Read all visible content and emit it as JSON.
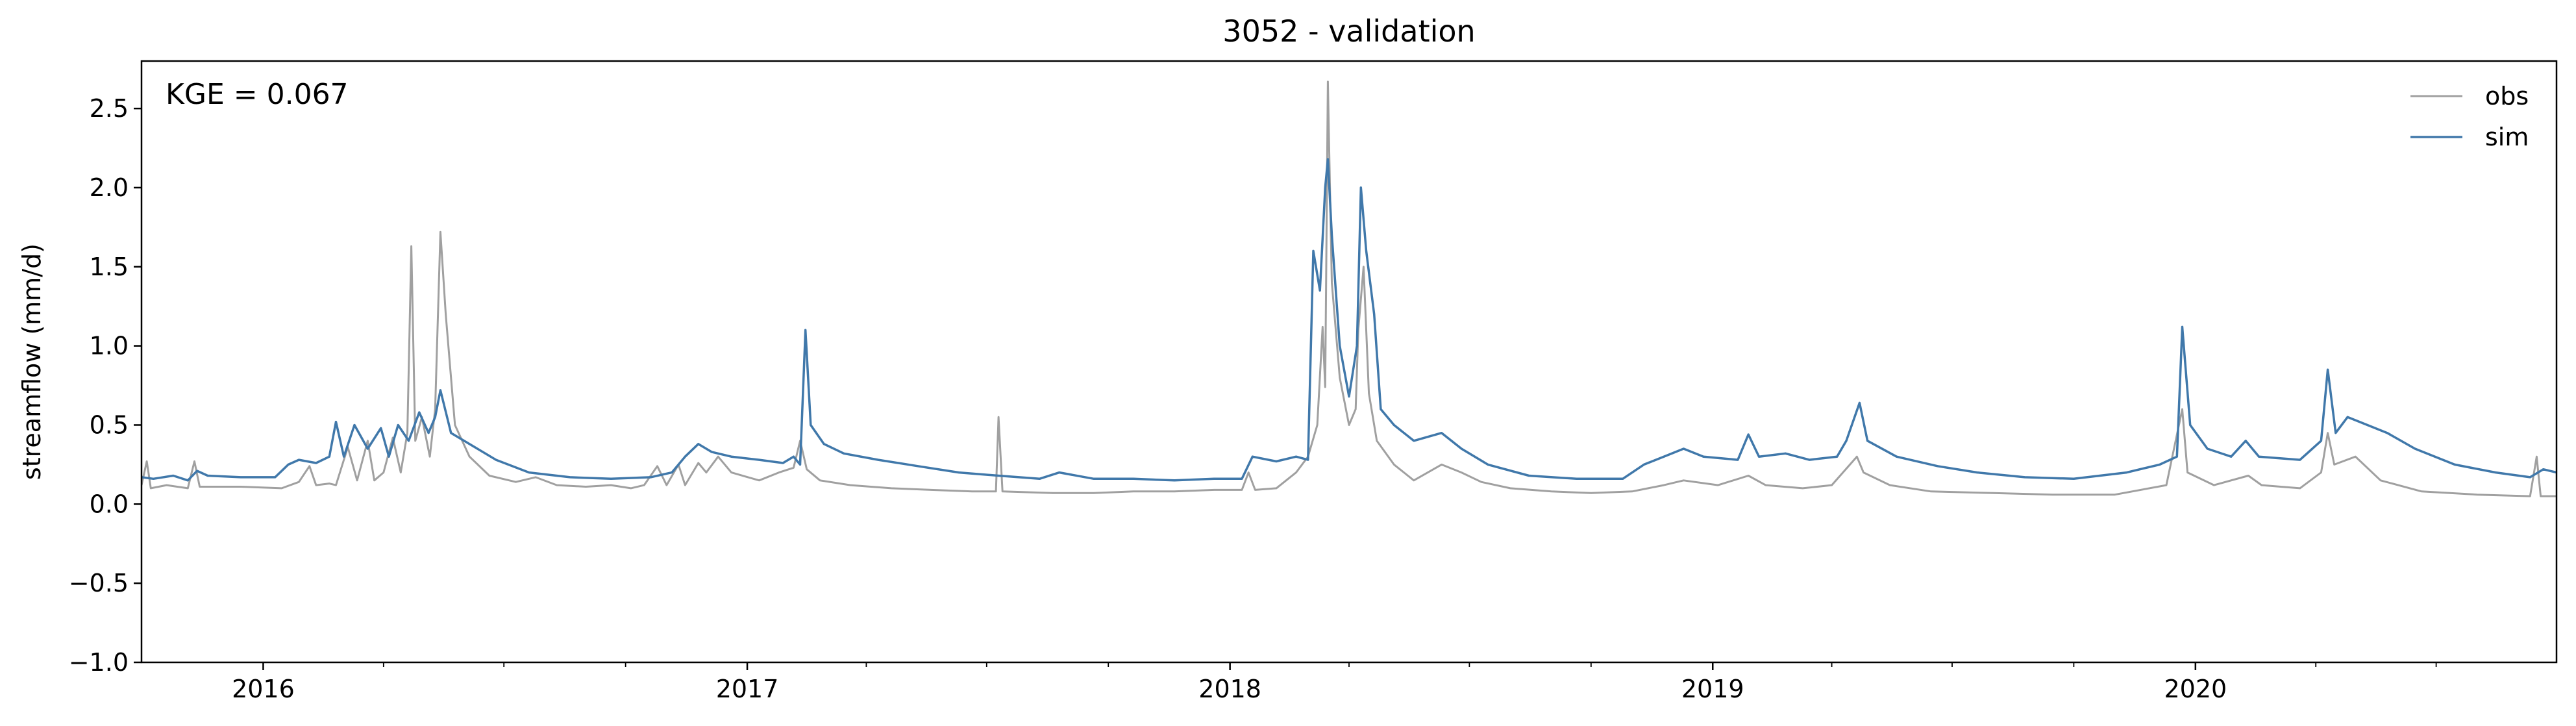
{
  "chart_data": {
    "type": "line",
    "title": "3052 - validation",
    "xlabel": "",
    "ylabel": "streamflow (mm/d)",
    "xlim": [
      "2015-10-01",
      "2020-09-30"
    ],
    "ylim": [
      -1.0,
      2.8
    ],
    "yticks": [
      -1.0,
      -0.5,
      0.0,
      0.5,
      1.0,
      1.5,
      2.0,
      2.5
    ],
    "ytick_labels": [
      "−1.0",
      "−0.5",
      "0.0",
      "0.5",
      "1.0",
      "1.5",
      "2.0",
      "2.5"
    ],
    "xticks": [
      "2016-01-01",
      "2017-01-01",
      "2018-01-01",
      "2019-01-01",
      "2020-01-01"
    ],
    "xtick_labels": [
      "2016",
      "2017",
      "2018",
      "2019",
      "2020"
    ],
    "grid": false,
    "legend_position": "top-right",
    "annotation": "KGE = 0.067",
    "series": [
      {
        "name": "obs",
        "color": "#a0a0a0",
        "points": [
          [
            "2015-10-01",
            0.12
          ],
          [
            "2015-10-05",
            0.27
          ],
          [
            "2015-10-08",
            0.1
          ],
          [
            "2015-10-20",
            0.12
          ],
          [
            "2015-11-05",
            0.1
          ],
          [
            "2015-11-10",
            0.27
          ],
          [
            "2015-11-14",
            0.11
          ],
          [
            "2015-12-15",
            0.11
          ],
          [
            "2016-01-15",
            0.1
          ],
          [
            "2016-01-28",
            0.14
          ],
          [
            "2016-02-05",
            0.24
          ],
          [
            "2016-02-10",
            0.12
          ],
          [
            "2016-02-20",
            0.13
          ],
          [
            "2016-02-25",
            0.12
          ],
          [
            "2016-03-05",
            0.36
          ],
          [
            "2016-03-12",
            0.15
          ],
          [
            "2016-03-20",
            0.4
          ],
          [
            "2016-03-25",
            0.15
          ],
          [
            "2016-04-01",
            0.2
          ],
          [
            "2016-04-08",
            0.42
          ],
          [
            "2016-04-14",
            0.2
          ],
          [
            "2016-04-19",
            0.45
          ],
          [
            "2016-04-22",
            1.63
          ],
          [
            "2016-04-25",
            0.4
          ],
          [
            "2016-04-30",
            0.55
          ],
          [
            "2016-05-06",
            0.3
          ],
          [
            "2016-05-10",
            0.6
          ],
          [
            "2016-05-14",
            1.72
          ],
          [
            "2016-05-18",
            1.2
          ],
          [
            "2016-05-25",
            0.5
          ],
          [
            "2016-06-05",
            0.3
          ],
          [
            "2016-06-20",
            0.18
          ],
          [
            "2016-07-10",
            0.14
          ],
          [
            "2016-07-25",
            0.17
          ],
          [
            "2016-08-10",
            0.12
          ],
          [
            "2016-09-01",
            0.11
          ],
          [
            "2016-09-20",
            0.12
          ],
          [
            "2016-10-05",
            0.1
          ],
          [
            "2016-10-15",
            0.12
          ],
          [
            "2016-10-25",
            0.24
          ],
          [
            "2016-11-01",
            0.12
          ],
          [
            "2016-11-10",
            0.25
          ],
          [
            "2016-11-15",
            0.12
          ],
          [
            "2016-11-25",
            0.26
          ],
          [
            "2016-12-01",
            0.2
          ],
          [
            "2016-12-10",
            0.3
          ],
          [
            "2016-12-20",
            0.2
          ],
          [
            "2017-01-10",
            0.15
          ],
          [
            "2017-01-25",
            0.2
          ],
          [
            "2017-02-05",
            0.23
          ],
          [
            "2017-02-10",
            0.4
          ],
          [
            "2017-02-15",
            0.22
          ],
          [
            "2017-02-25",
            0.15
          ],
          [
            "2017-03-20",
            0.12
          ],
          [
            "2017-04-20",
            0.1
          ],
          [
            "2017-05-20",
            0.09
          ],
          [
            "2017-06-20",
            0.08
          ],
          [
            "2017-07-08",
            0.08
          ],
          [
            "2017-07-10",
            0.55
          ],
          [
            "2017-07-13",
            0.08
          ],
          [
            "2017-08-20",
            0.07
          ],
          [
            "2017-09-20",
            0.07
          ],
          [
            "2017-10-20",
            0.08
          ],
          [
            "2017-11-20",
            0.08
          ],
          [
            "2017-12-20",
            0.09
          ],
          [
            "2018-01-10",
            0.09
          ],
          [
            "2018-01-15",
            0.2
          ],
          [
            "2018-01-20",
            0.09
          ],
          [
            "2018-02-05",
            0.1
          ],
          [
            "2018-02-20",
            0.2
          ],
          [
            "2018-03-01",
            0.3
          ],
          [
            "2018-03-08",
            0.5
          ],
          [
            "2018-03-12",
            1.12
          ],
          [
            "2018-03-14",
            0.74
          ],
          [
            "2018-03-16",
            2.67
          ],
          [
            "2018-03-19",
            1.4
          ],
          [
            "2018-03-25",
            0.8
          ],
          [
            "2018-04-01",
            0.5
          ],
          [
            "2018-04-06",
            0.6
          ],
          [
            "2018-04-08",
            1.1
          ],
          [
            "2018-04-12",
            1.5
          ],
          [
            "2018-04-16",
            0.7
          ],
          [
            "2018-04-22",
            0.4
          ],
          [
            "2018-05-05",
            0.25
          ],
          [
            "2018-05-20",
            0.15
          ],
          [
            "2018-06-10",
            0.25
          ],
          [
            "2018-06-25",
            0.2
          ],
          [
            "2018-07-10",
            0.14
          ],
          [
            "2018-08-01",
            0.1
          ],
          [
            "2018-09-01",
            0.08
          ],
          [
            "2018-10-01",
            0.07
          ],
          [
            "2018-11-01",
            0.08
          ],
          [
            "2018-11-25",
            0.12
          ],
          [
            "2018-12-10",
            0.15
          ],
          [
            "2019-01-05",
            0.12
          ],
          [
            "2019-01-28",
            0.18
          ],
          [
            "2019-02-10",
            0.12
          ],
          [
            "2019-03-10",
            0.1
          ],
          [
            "2019-04-01",
            0.12
          ],
          [
            "2019-04-20",
            0.3
          ],
          [
            "2019-04-25",
            0.2
          ],
          [
            "2019-05-15",
            0.12
          ],
          [
            "2019-06-15",
            0.08
          ],
          [
            "2019-08-01",
            0.07
          ],
          [
            "2019-09-15",
            0.06
          ],
          [
            "2019-11-01",
            0.06
          ],
          [
            "2019-12-10",
            0.12
          ],
          [
            "2019-12-22",
            0.6
          ],
          [
            "2019-12-26",
            0.2
          ],
          [
            "2020-01-15",
            0.12
          ],
          [
            "2020-02-10",
            0.18
          ],
          [
            "2020-02-20",
            0.12
          ],
          [
            "2020-03-20",
            0.1
          ],
          [
            "2020-04-05",
            0.2
          ],
          [
            "2020-04-10",
            0.45
          ],
          [
            "2020-04-15",
            0.25
          ],
          [
            "2020-05-01",
            0.3
          ],
          [
            "2020-05-20",
            0.15
          ],
          [
            "2020-06-20",
            0.08
          ],
          [
            "2020-08-01",
            0.06
          ],
          [
            "2020-09-10",
            0.05
          ],
          [
            "2020-09-15",
            0.3
          ],
          [
            "2020-09-18",
            0.05
          ],
          [
            "2020-09-30",
            0.05
          ]
        ]
      },
      {
        "name": "sim",
        "color": "#4078aa",
        "points": [
          [
            "2015-10-01",
            0.17
          ],
          [
            "2015-10-10",
            0.16
          ],
          [
            "2015-10-25",
            0.18
          ],
          [
            "2015-11-05",
            0.15
          ],
          [
            "2015-11-12",
            0.21
          ],
          [
            "2015-11-20",
            0.18
          ],
          [
            "2015-12-15",
            0.17
          ],
          [
            "2016-01-10",
            0.17
          ],
          [
            "2016-01-20",
            0.25
          ],
          [
            "2016-01-28",
            0.28
          ],
          [
            "2016-02-10",
            0.26
          ],
          [
            "2016-02-20",
            0.3
          ],
          [
            "2016-02-25",
            0.52
          ],
          [
            "2016-03-02",
            0.3
          ],
          [
            "2016-03-10",
            0.5
          ],
          [
            "2016-03-20",
            0.35
          ],
          [
            "2016-03-30",
            0.48
          ],
          [
            "2016-04-05",
            0.3
          ],
          [
            "2016-04-12",
            0.5
          ],
          [
            "2016-04-20",
            0.4
          ],
          [
            "2016-04-28",
            0.58
          ],
          [
            "2016-05-05",
            0.45
          ],
          [
            "2016-05-10",
            0.55
          ],
          [
            "2016-05-14",
            0.72
          ],
          [
            "2016-05-22",
            0.45
          ],
          [
            "2016-06-05",
            0.38
          ],
          [
            "2016-06-25",
            0.28
          ],
          [
            "2016-07-20",
            0.2
          ],
          [
            "2016-08-20",
            0.17
          ],
          [
            "2016-09-20",
            0.16
          ],
          [
            "2016-10-20",
            0.17
          ],
          [
            "2016-11-05",
            0.2
          ],
          [
            "2016-11-15",
            0.3
          ],
          [
            "2016-11-25",
            0.38
          ],
          [
            "2016-12-05",
            0.33
          ],
          [
            "2016-12-20",
            0.3
          ],
          [
            "2017-01-10",
            0.28
          ],
          [
            "2017-01-28",
            0.26
          ],
          [
            "2017-02-05",
            0.3
          ],
          [
            "2017-02-10",
            0.25
          ],
          [
            "2017-02-14",
            1.1
          ],
          [
            "2017-02-18",
            0.5
          ],
          [
            "2017-02-28",
            0.38
          ],
          [
            "2017-03-15",
            0.32
          ],
          [
            "2017-04-10",
            0.28
          ],
          [
            "2017-05-10",
            0.24
          ],
          [
            "2017-06-10",
            0.2
          ],
          [
            "2017-07-10",
            0.18
          ],
          [
            "2017-08-10",
            0.16
          ],
          [
            "2017-08-25",
            0.2
          ],
          [
            "2017-09-20",
            0.16
          ],
          [
            "2017-10-20",
            0.16
          ],
          [
            "2017-11-20",
            0.15
          ],
          [
            "2017-12-20",
            0.16
          ],
          [
            "2018-01-10",
            0.16
          ],
          [
            "2018-01-18",
            0.3
          ],
          [
            "2018-02-05",
            0.27
          ],
          [
            "2018-02-20",
            0.3
          ],
          [
            "2018-03-01",
            0.28
          ],
          [
            "2018-03-05",
            1.6
          ],
          [
            "2018-03-10",
            1.35
          ],
          [
            "2018-03-14",
            2.0
          ],
          [
            "2018-03-16",
            2.18
          ],
          [
            "2018-03-19",
            1.7
          ],
          [
            "2018-03-25",
            1.0
          ],
          [
            "2018-04-01",
            0.68
          ],
          [
            "2018-04-07",
            1.0
          ],
          [
            "2018-04-10",
            2.0
          ],
          [
            "2018-04-14",
            1.6
          ],
          [
            "2018-04-20",
            1.2
          ],
          [
            "2018-04-25",
            0.6
          ],
          [
            "2018-05-05",
            0.5
          ],
          [
            "2018-05-20",
            0.4
          ],
          [
            "2018-06-10",
            0.45
          ],
          [
            "2018-06-25",
            0.35
          ],
          [
            "2018-07-15",
            0.25
          ],
          [
            "2018-08-15",
            0.18
          ],
          [
            "2018-09-20",
            0.16
          ],
          [
            "2018-10-25",
            0.16
          ],
          [
            "2018-11-10",
            0.25
          ],
          [
            "2018-11-25",
            0.3
          ],
          [
            "2018-12-10",
            0.35
          ],
          [
            "2018-12-25",
            0.3
          ],
          [
            "2019-01-20",
            0.28
          ],
          [
            "2019-01-28",
            0.44
          ],
          [
            "2019-02-05",
            0.3
          ],
          [
            "2019-02-25",
            0.32
          ],
          [
            "2019-03-15",
            0.28
          ],
          [
            "2019-04-05",
            0.3
          ],
          [
            "2019-04-12",
            0.4
          ],
          [
            "2019-04-22",
            0.64
          ],
          [
            "2019-04-28",
            0.4
          ],
          [
            "2019-05-20",
            0.3
          ],
          [
            "2019-06-20",
            0.24
          ],
          [
            "2019-07-20",
            0.2
          ],
          [
            "2019-08-25",
            0.17
          ],
          [
            "2019-10-01",
            0.16
          ],
          [
            "2019-11-10",
            0.2
          ],
          [
            "2019-12-05",
            0.25
          ],
          [
            "2019-12-18",
            0.3
          ],
          [
            "2019-12-22",
            1.12
          ],
          [
            "2019-12-28",
            0.5
          ],
          [
            "2020-01-10",
            0.35
          ],
          [
            "2020-01-28",
            0.3
          ],
          [
            "2020-02-08",
            0.4
          ],
          [
            "2020-02-18",
            0.3
          ],
          [
            "2020-03-20",
            0.28
          ],
          [
            "2020-04-05",
            0.4
          ],
          [
            "2020-04-10",
            0.85
          ],
          [
            "2020-04-16",
            0.45
          ],
          [
            "2020-04-25",
            0.55
          ],
          [
            "2020-05-10",
            0.5
          ],
          [
            "2020-05-25",
            0.45
          ],
          [
            "2020-06-15",
            0.35
          ],
          [
            "2020-07-15",
            0.25
          ],
          [
            "2020-08-15",
            0.2
          ],
          [
            "2020-09-10",
            0.17
          ],
          [
            "2020-09-20",
            0.22
          ],
          [
            "2020-09-30",
            0.2
          ]
        ]
      }
    ]
  }
}
